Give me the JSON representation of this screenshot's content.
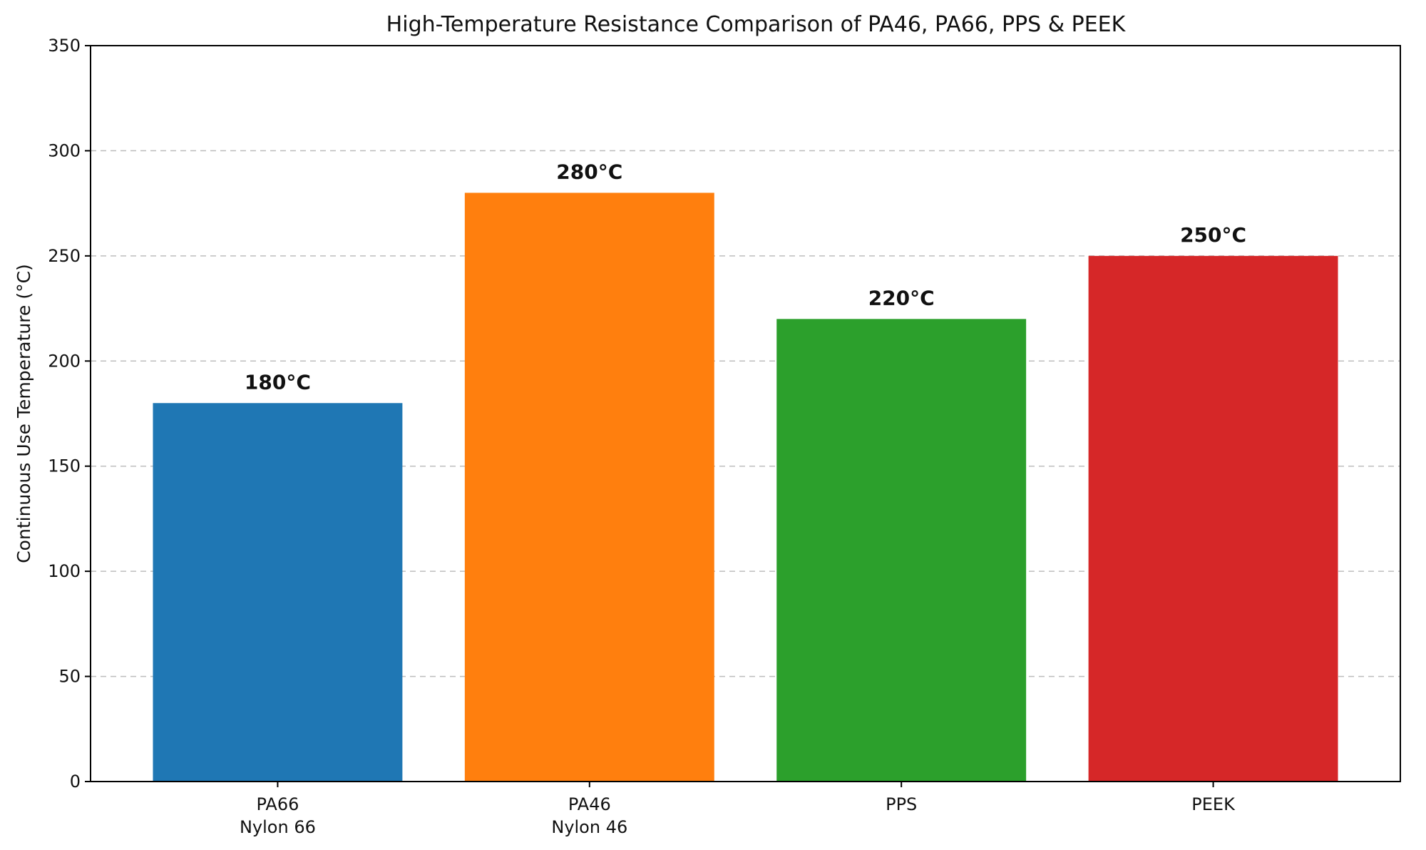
{
  "chart_data": {
    "type": "bar",
    "title": "High-Temperature Resistance Comparison of PA46, PA66, PPS & PEEK",
    "xlabel": "",
    "ylabel": "Continuous Use Temperature (°C)",
    "ylim": [
      0,
      350
    ],
    "yticks": [
      0,
      50,
      100,
      150,
      200,
      250,
      300,
      350
    ],
    "grid": true,
    "categories": [
      [
        "PA66",
        "Nylon 66"
      ],
      [
        "PA46",
        "Nylon 46"
      ],
      [
        "PPS"
      ],
      [
        "PEEK"
      ]
    ],
    "values": [
      180,
      280,
      220,
      250
    ],
    "data_labels": [
      "180°C",
      "280°C",
      "220°C",
      "250°C"
    ],
    "colors": [
      "#1f77b4",
      "#ff7f0e",
      "#2ca02c",
      "#d62728"
    ]
  }
}
